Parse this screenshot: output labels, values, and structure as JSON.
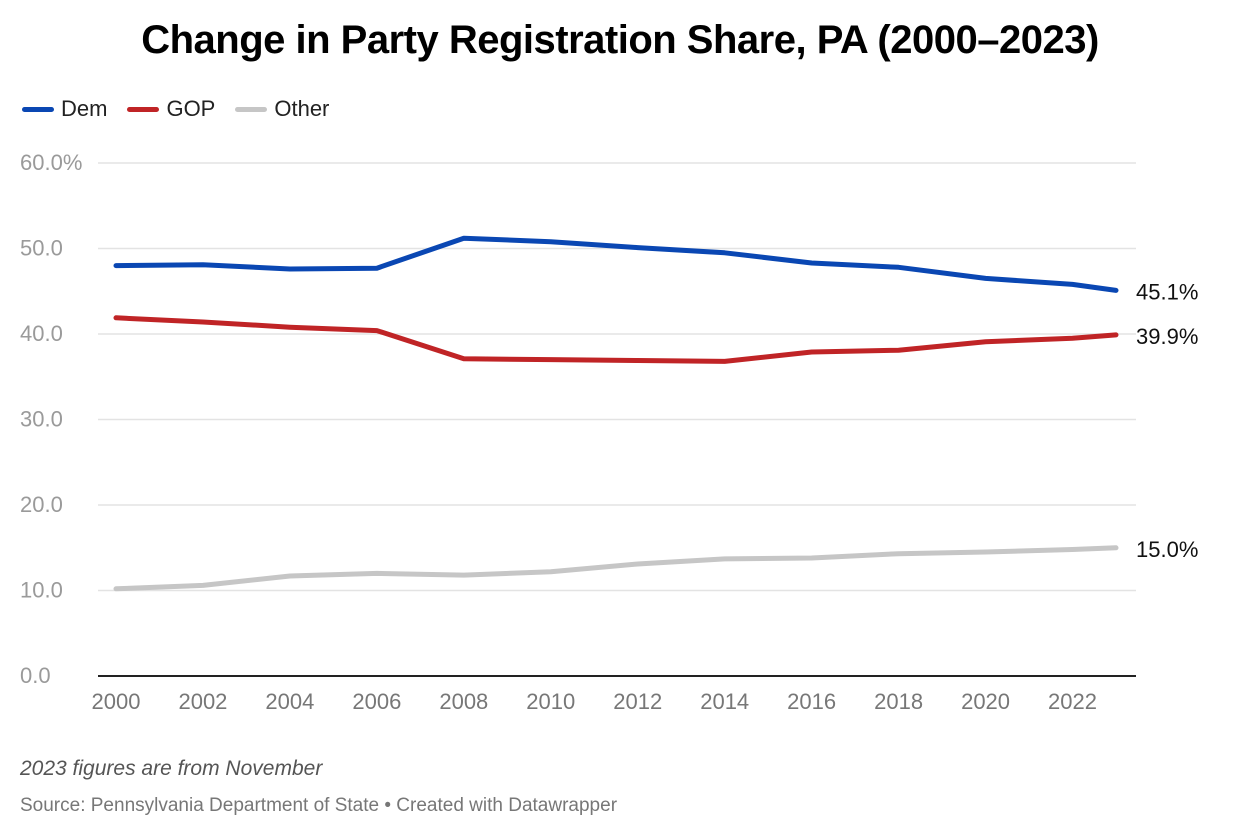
{
  "header": {
    "title": "Change in Party Registration Share, PA (2000–2023)"
  },
  "colors": {
    "dem": "#0a47b3",
    "gop": "#c02426",
    "other": "#c6c6c6",
    "grid": "#e3e3e3",
    "axis_text": "#9a9a9a"
  },
  "chart_data": {
    "type": "line",
    "title": "Change in Party Registration Share, PA (2000–2023)",
    "xlabel": "",
    "ylabel": "",
    "xlim": [
      2000,
      2023
    ],
    "ylim": [
      0,
      60
    ],
    "grid": true,
    "legend_position": "top-left",
    "x_ticks": [
      2000,
      2002,
      2004,
      2006,
      2008,
      2010,
      2012,
      2014,
      2016,
      2018,
      2020,
      2022
    ],
    "y_ticks": [
      {
        "value": 0,
        "label": "0.0"
      },
      {
        "value": 10,
        "label": "10.0"
      },
      {
        "value": 20,
        "label": "20.0"
      },
      {
        "value": 30,
        "label": "30.0"
      },
      {
        "value": 40,
        "label": "40.0"
      },
      {
        "value": 50,
        "label": "50.0"
      },
      {
        "value": 60,
        "label": "60.0%"
      }
    ],
    "x": [
      2000,
      2002,
      2004,
      2006,
      2008,
      2010,
      2012,
      2014,
      2016,
      2018,
      2020,
      2022,
      2023
    ],
    "series": [
      {
        "name": "Dem",
        "color_key": "dem",
        "values": [
          48.0,
          48.1,
          47.6,
          47.7,
          51.2,
          50.8,
          50.1,
          49.5,
          48.3,
          47.8,
          46.5,
          45.8,
          45.1
        ],
        "end_label": "45.1%"
      },
      {
        "name": "GOP",
        "color_key": "gop",
        "values": [
          41.9,
          41.4,
          40.8,
          40.4,
          37.1,
          37.0,
          36.9,
          36.8,
          37.9,
          38.1,
          39.1,
          39.5,
          39.9
        ],
        "end_label": "39.9%"
      },
      {
        "name": "Other",
        "color_key": "other",
        "values": [
          10.2,
          10.6,
          11.7,
          12.0,
          11.8,
          12.2,
          13.1,
          13.7,
          13.8,
          14.3,
          14.5,
          14.8,
          15.0
        ],
        "end_label": "15.0%"
      }
    ]
  },
  "footer": {
    "note": "2023 figures are from November",
    "source": "Source: Pennsylvania Department of State • Created with Datawrapper"
  }
}
